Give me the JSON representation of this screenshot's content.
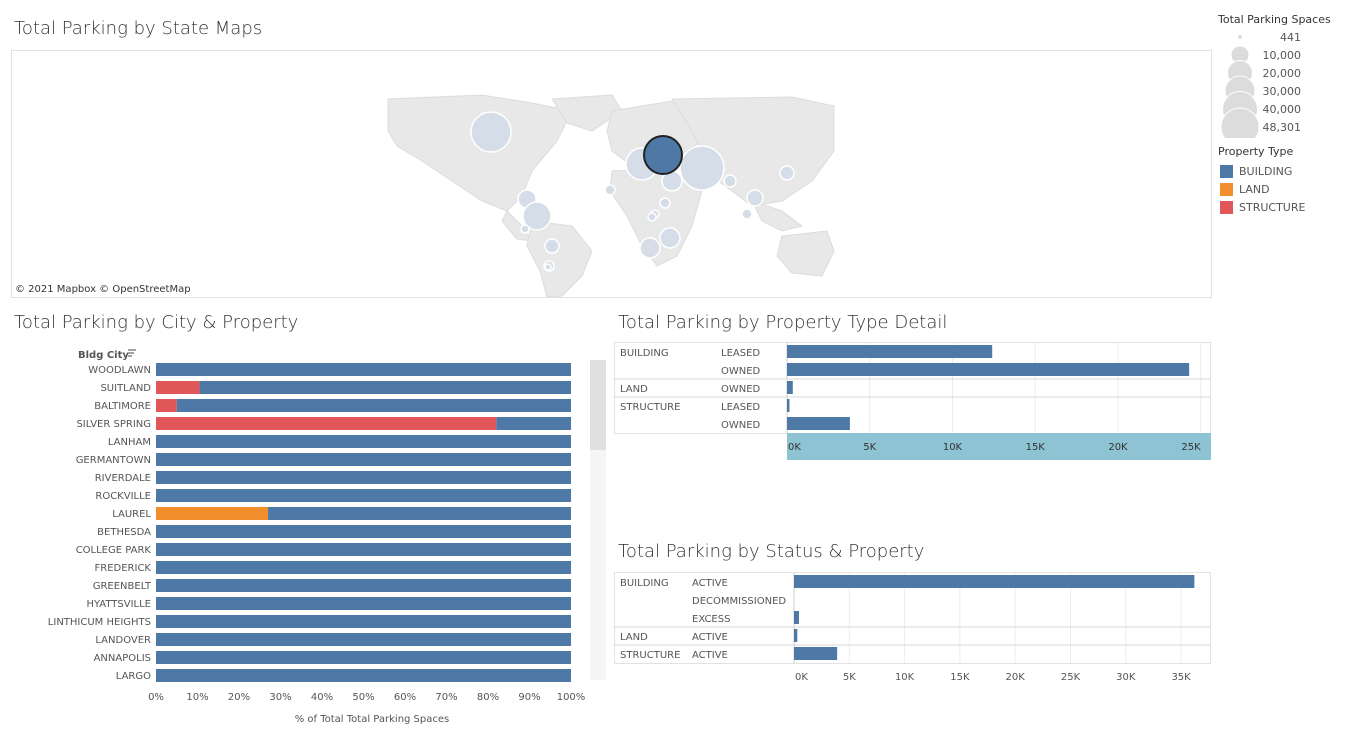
{
  "map": {
    "title": "Total Parking by State Maps",
    "attribution": "© 2021 Mapbox  © OpenStreetMap"
  },
  "legend": {
    "size_title": "Total Parking Spaces",
    "size_items": [
      "441",
      "10,000",
      "20,000",
      "30,000",
      "40,000",
      "48,301"
    ],
    "type_title": "Property Type",
    "type_items": [
      {
        "label": "BUILDING",
        "color": "#4e79a7"
      },
      {
        "label": "LAND",
        "color": "#f28e2b"
      },
      {
        "label": "STRUCTURE",
        "color": "#e15759"
      }
    ]
  },
  "colors": {
    "building": "#4e79a7",
    "land": "#f28e2b",
    "structure": "#e15759",
    "axis_highlight": "#8ec3d3"
  },
  "chart_data": [
    {
      "type": "bar",
      "stacked": "percent",
      "orientation": "horizontal",
      "title": "Total Parking by City & Property",
      "row_header": "Bldg City",
      "xlabel": "% of Total Total Parking Spaces",
      "xticks": [
        "0%",
        "10%",
        "20%",
        "30%",
        "40%",
        "50%",
        "60%",
        "70%",
        "80%",
        "90%",
        "100%"
      ],
      "categories": [
        "WOODLAWN",
        "SUITLAND",
        "BALTIMORE",
        "SILVER SPRING",
        "LANHAM",
        "GERMANTOWN",
        "RIVERDALE",
        "ROCKVILLE",
        "LAUREL",
        "BETHESDA",
        "COLLEGE PARK",
        "FREDERICK",
        "GREENBELT",
        "HYATTSVILLE",
        "LINTHICUM HEIGHTS",
        "LANDOVER",
        "ANNAPOLIS",
        "LARGO"
      ],
      "series": [
        {
          "name": "STRUCTURE",
          "values": [
            0,
            10.5,
            5,
            82,
            0,
            0,
            0,
            0,
            0,
            0,
            0,
            0,
            0,
            0,
            0,
            0,
            0,
            0
          ]
        },
        {
          "name": "LAND",
          "values": [
            0,
            0,
            0,
            0,
            0,
            0,
            0,
            0,
            27,
            0,
            0,
            0,
            0,
            0,
            0,
            0,
            0,
            0
          ]
        },
        {
          "name": "BUILDING",
          "values": [
            100,
            89.5,
            95,
            18,
            100,
            100,
            100,
            100,
            73,
            100,
            100,
            100,
            100,
            100,
            100,
            100,
            100,
            100
          ]
        }
      ],
      "xlim": [
        0,
        100
      ]
    },
    {
      "type": "bar",
      "orientation": "horizontal",
      "title": "Total Parking by Property Type Detail",
      "rows": [
        {
          "group": "BUILDING",
          "sub": "LEASED",
          "value": 12400
        },
        {
          "group": "",
          "sub": "OWNED",
          "value": 24300
        },
        {
          "group": "LAND",
          "sub": "OWNED",
          "value": 350
        },
        {
          "group": "STRUCTURE",
          "sub": "LEASED",
          "value": 150
        },
        {
          "group": "",
          "sub": "OWNED",
          "value": 3800
        }
      ],
      "xticks": [
        "0K",
        "5K",
        "10K",
        "15K",
        "20K",
        "25K"
      ],
      "xlim": [
        0,
        25500
      ]
    },
    {
      "type": "bar",
      "orientation": "horizontal",
      "title": "Total Parking by Status & Property",
      "rows": [
        {
          "group": "BUILDING",
          "sub": "ACTIVE",
          "value": 36200
        },
        {
          "group": "",
          "sub": "DECOMMISSIONED",
          "value": 0
        },
        {
          "group": "",
          "sub": "EXCESS",
          "value": 450
        },
        {
          "group": "LAND",
          "sub": "ACTIVE",
          "value": 300
        },
        {
          "group": "STRUCTURE",
          "sub": "ACTIVE",
          "value": 3900
        }
      ],
      "xticks": [
        "0K",
        "5K",
        "10K",
        "15K",
        "20K",
        "25K",
        "30K",
        "35K"
      ],
      "xlim": [
        0,
        36800
      ]
    }
  ]
}
